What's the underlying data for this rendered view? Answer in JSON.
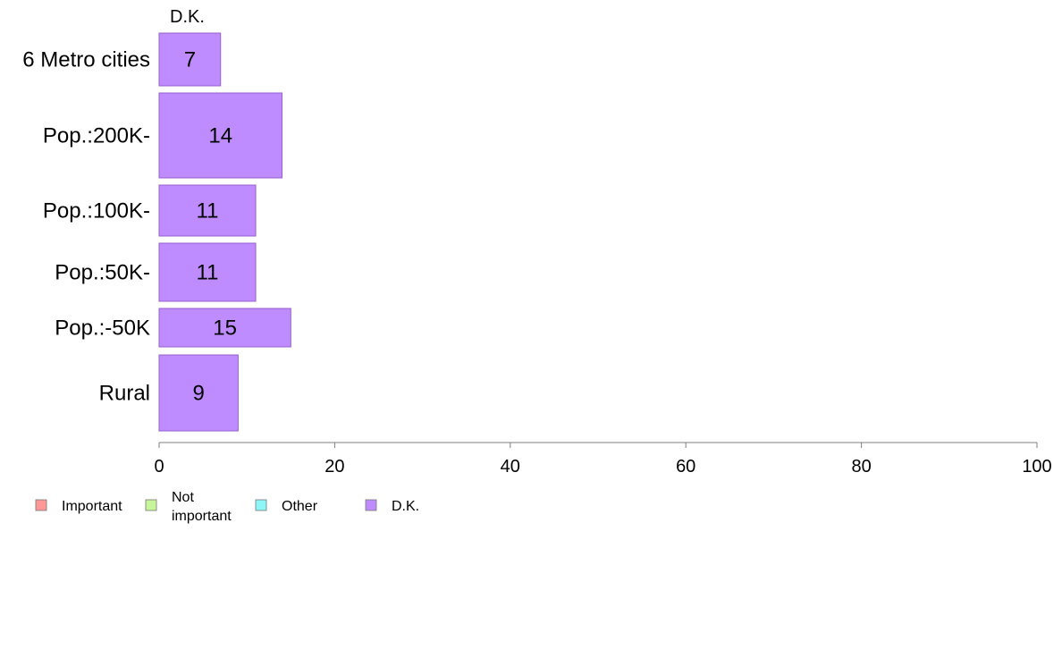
{
  "chart_data": {
    "type": "bar",
    "orientation": "horizontal",
    "categories": [
      "6 Metro cities",
      "Pop.:200K-",
      "Pop.:100K-",
      "Pop.:50K-",
      "Pop.:-50K",
      "Rural"
    ],
    "series": [
      {
        "name": "D.K.",
        "values": [
          7,
          14,
          11,
          11,
          15,
          9
        ]
      }
    ],
    "data_labels": [
      "7",
      "14",
      "11",
      "11",
      "15",
      "9"
    ],
    "series_header": "D.K.",
    "xlim": [
      0,
      100
    ],
    "x_ticks": [
      "0",
      "20",
      "40",
      "60",
      "80",
      "100"
    ],
    "grid": false,
    "legend": {
      "placement": "bottom-left",
      "entries": [
        {
          "label_lines": [
            "Important"
          ],
          "color": "#ff9896"
        },
        {
          "label_lines": [
            "Not",
            "important"
          ],
          "color": "#c7f59a"
        },
        {
          "label_lines": [
            "Other"
          ],
          "color": "#8df7f7"
        },
        {
          "label_lines": [
            "D.K."
          ],
          "color": "#bf8cff"
        }
      ]
    },
    "colors": {
      "bar_fill": "#bf8cff",
      "bar_stroke": "#9660cc",
      "axis": "#7f7f7f"
    }
  }
}
